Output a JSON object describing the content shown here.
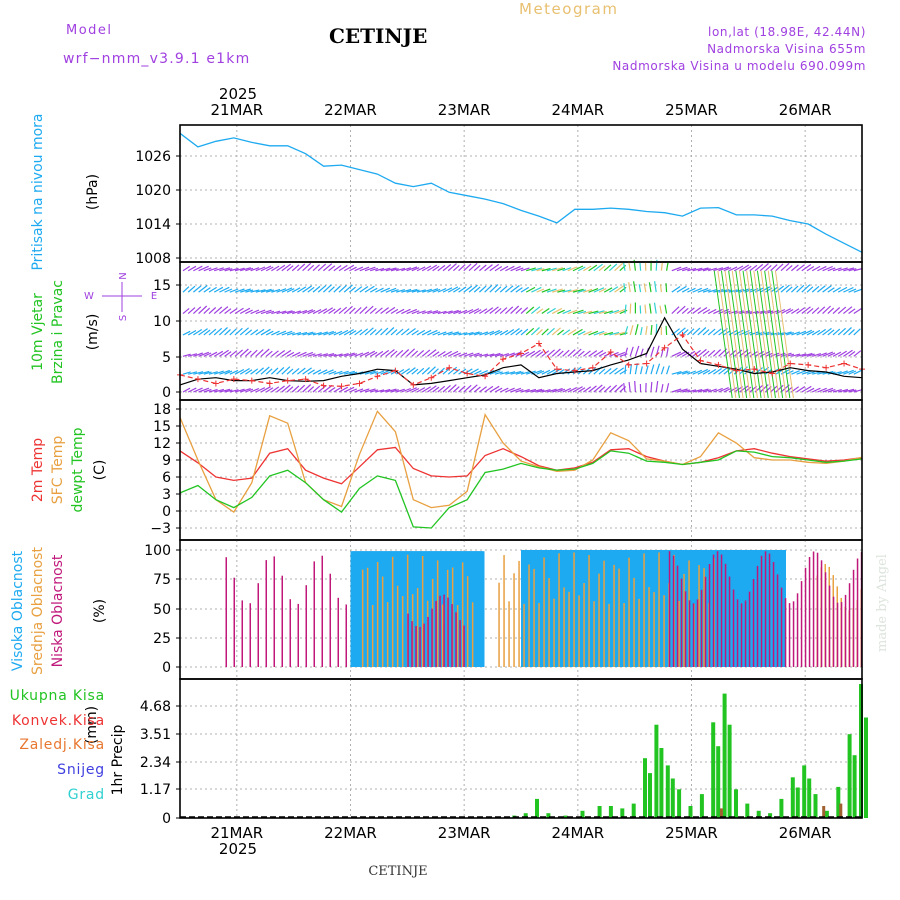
{
  "header": {
    "model_label": "Model",
    "model_name": "wrf−nmm_v3.9.1 e1km",
    "station": "CETINJE",
    "product": "Meteogram",
    "location_line": "lon,lat (18.98E, 42.44N)",
    "elevation_line": "Nadmorska Visina 655m",
    "model_elevation_line": "Nadmorska Visina u modelu 690.099m",
    "footer_station": "CETINJE",
    "watermark": "made by Angel"
  },
  "colors": {
    "purple": "#a040e0",
    "pressure": "#1eaaf0",
    "green": "#22c422",
    "red": "#ee3333",
    "orange": "#e8a040",
    "magenta": "#c0187a",
    "blue": "#4040e0",
    "cyan": "#30d0d0",
    "gold": "#e8c070",
    "grid": "#b0b0b0"
  },
  "chart_data": [
    {
      "id": "pressure",
      "type": "line",
      "ylabel_lines": [
        "Pritisak na nivou mora"
      ],
      "unit": "(hPa)",
      "yticks": [
        "1008",
        "1014",
        "1020",
        "1026"
      ],
      "ylim": [
        1008,
        1032
      ],
      "time_axis": {
        "days": [
          "21MAR",
          "22MAR",
          "23MAR",
          "24MAR",
          "25MAR",
          "26MAR"
        ],
        "year": "2025",
        "start": "2025-03-20 12:00",
        "end": "2025-03-26 12:00",
        "step_hours": 6
      },
      "series": [
        {
          "values": [
            1030.0,
            1027.6,
            1028.6,
            1029.2,
            1028.4,
            1027.8,
            1027.8,
            1026.4,
            1024.2,
            1024.4,
            1023.6,
            1022.8,
            1021.2,
            1020.6,
            1021.2,
            1019.6,
            1019.0,
            1018.4,
            1017.6,
            1016.4,
            1015.4,
            1014.2,
            1016.6,
            1016.6,
            1016.8,
            1016.6,
            1016.2,
            1016.0,
            1015.4,
            1016.8,
            1016.9,
            1015.6,
            1015.6,
            1015.4,
            1014.6,
            1014.0,
            1012.2,
            1010.6,
            1009.0
          ]
        }
      ]
    },
    {
      "id": "wind",
      "type": "line",
      "ylabel_lines": [
        "10m Vjetar",
        "Brzina i Pravac"
      ],
      "unit": "(m/s)",
      "compass": {
        "north": "N",
        "south": "S",
        "west": "W",
        "east": "E"
      },
      "yticks": [
        "0",
        "5",
        "10",
        "15"
      ],
      "ylim": [
        -1,
        18
      ],
      "series": [
        {
          "values": [
            1.0,
            1.8,
            2.0,
            1.6,
            1.6,
            2.0,
            1.6,
            1.5,
            1.6,
            2.2,
            2.6,
            3.2,
            3.0,
            1.0,
            1.2,
            1.6,
            2.0,
            2.4,
            3.4,
            3.8,
            2.0,
            2.6,
            2.8,
            3.0,
            3.8,
            4.5,
            5.4,
            10.4,
            6.0,
            4.0,
            3.6,
            3.2,
            2.6,
            2.8,
            3.4,
            3.0,
            2.8,
            2.2,
            2.0
          ]
        },
        {
          "values": [
            2.4,
            1.8,
            1.2,
            1.8,
            1.6,
            1.2,
            1.6,
            1.8,
            0.9,
            0.8,
            1.2,
            2.2,
            3.0,
            1.0,
            2.0,
            3.4,
            2.6,
            2.2,
            4.6,
            5.4,
            6.8,
            3.2,
            3.0,
            3.4,
            5.6,
            3.8,
            4.0,
            6.2,
            8.0,
            4.4,
            3.8,
            3.0,
            3.2,
            2.6,
            4.0,
            3.8,
            3.4,
            4.0,
            3.2
          ]
        }
      ],
      "barb_rows": [
        0,
        2.5,
        5,
        8,
        11,
        14,
        17
      ]
    },
    {
      "id": "temperature",
      "type": "line",
      "ylabel_lines": [
        "2m Temp",
        "SFC Temp",
        "dewpt Temp"
      ],
      "unit": "(C)",
      "yticks": [
        "−3",
        "0",
        "3",
        "6",
        "9",
        "12",
        "15",
        "18"
      ],
      "ylim": [
        -5,
        18
      ],
      "series": [
        {
          "name": "2m Temp",
          "values": [
            10.6,
            8.5,
            6.0,
            5.4,
            5.8,
            10.2,
            11.0,
            7.2,
            5.8,
            4.8,
            7.8,
            10.8,
            11.2,
            7.5,
            6.2,
            6.0,
            6.2,
            9.8,
            11.0,
            9.6,
            8.0,
            7.2,
            7.6,
            8.6,
            10.8,
            11.0,
            9.6,
            8.8,
            8.2,
            8.6,
            9.4,
            10.6,
            11.0,
            10.2,
            9.6,
            9.2,
            8.8,
            9.0,
            9.4
          ]
        },
        {
          "name": "SFC Temp",
          "values": [
            16.5,
            9.0,
            2.0,
            -0.2,
            5.0,
            16.8,
            15.5,
            5.0,
            2.0,
            0.8,
            10.0,
            17.6,
            14.0,
            2.0,
            0.6,
            1.0,
            3.5,
            17.0,
            12.0,
            8.8,
            7.8,
            7.0,
            7.2,
            9.0,
            13.8,
            12.4,
            9.2,
            8.8,
            8.2,
            9.6,
            13.8,
            12.0,
            9.4,
            9.0,
            9.0,
            8.6,
            8.4,
            8.8,
            9.5
          ]
        },
        {
          "name": "dewpt Temp",
          "values": [
            3.2,
            4.5,
            2.0,
            0.6,
            2.4,
            6.2,
            7.2,
            5.0,
            2.0,
            -0.2,
            4.0,
            6.2,
            5.4,
            -2.8,
            -3.0,
            0.6,
            2.0,
            6.8,
            7.4,
            8.4,
            7.6,
            7.2,
            7.4,
            8.4,
            10.6,
            10.2,
            8.8,
            8.6,
            8.2,
            8.6,
            9.0,
            10.6,
            10.4,
            9.6,
            9.4,
            9.0,
            8.6,
            8.8,
            9.2
          ]
        }
      ]
    },
    {
      "id": "clouds",
      "type": "bar",
      "ylabel_lines": [
        "Visoka Oblacnost",
        "Srednja Oblacnost",
        "Niska Oblacnost"
      ],
      "unit": "(%)",
      "yticks": [
        "0",
        "25",
        "50",
        "75",
        "100"
      ],
      "ylim": [
        0,
        100
      ],
      "series": [
        {
          "name": "Visoka Oblacnost",
          "bands": [
            [
              1.5,
              2.65,
              99,
              2
            ],
            [
              3.0,
              5.3,
              100,
              1.5
            ]
          ]
        },
        {
          "name": "Srednja Oblacnost",
          "bands": [
            [
              1.6,
              2.6,
              96,
              5
            ],
            [
              2.8,
              4.7,
              98,
              5
            ],
            [
              5.6,
              6.0,
              88,
              4
            ]
          ]
        },
        {
          "name": "Niska Oblacnost",
          "bands": [
            [
              0.4,
              1.5,
              96,
              8
            ],
            [
              2.0,
              2.5,
              62,
              4
            ],
            [
              4.3,
              6.0,
              99,
              4
            ]
          ]
        }
      ]
    },
    {
      "id": "precip",
      "type": "bar",
      "ylabel_lines": [
        "1hr Precip"
      ],
      "unit": "(mm)",
      "yticks": [
        "0",
        "1.17",
        "2.34",
        "3.51",
        "4.68"
      ],
      "ylim": [
        0,
        5.9
      ],
      "legend": [
        "Ukupna Kisa",
        "Konvek.Kisa",
        "Zaledj.Kisa",
        "Snijeg",
        "Grad"
      ],
      "series": [
        {
          "name": "Ukupna Kisa",
          "x": [
            2.95,
            3.05,
            3.15,
            3.25,
            3.4,
            3.55,
            3.7,
            3.8,
            3.9,
            4.0,
            4.1,
            4.2,
            4.3,
            4.4,
            4.5,
            4.6,
            4.7,
            4.8,
            4.9,
            5.0,
            5.1,
            5.2,
            5.3,
            5.4,
            5.5,
            5.6,
            5.7,
            5.8,
            5.9,
            6.0
          ],
          "values": [
            0.1,
            0.2,
            0.8,
            0.2,
            0.1,
            0.3,
            0.5,
            0.5,
            0.4,
            0.6,
            2.5,
            3.9,
            2.2,
            1.2,
            0.5,
            1.0,
            4.0,
            5.2,
            1.2,
            0.6,
            0.3,
            0.2,
            0.8,
            1.7,
            2.2,
            1.0,
            0.3,
            1.3,
            3.5,
            5.6
          ]
        },
        {
          "name": "Konvek.Kisa",
          "x": [
            4.75,
            5.65,
            5.8
          ],
          "values": [
            0.4,
            0.5,
            0.6
          ]
        }
      ]
    }
  ]
}
